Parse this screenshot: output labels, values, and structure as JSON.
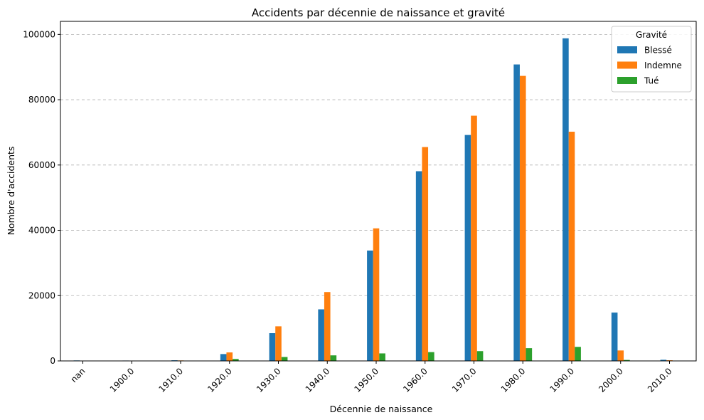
{
  "chart_data": {
    "type": "bar",
    "title": "Accidents par décennie de naissance et gravité",
    "xlabel": "Décennie de naissance",
    "ylabel": "Nombre d'accidents",
    "categories": [
      "nan",
      "1900.0",
      "1910.0",
      "1920.0",
      "1930.0",
      "1940.0",
      "1950.0",
      "1960.0",
      "1970.0",
      "1980.0",
      "1990.0",
      "2000.0",
      "2010.0"
    ],
    "series": [
      {
        "name": "Blessé",
        "color": "#1f77b4",
        "values": [
          150,
          120,
          200,
          2100,
          8500,
          15800,
          33800,
          58100,
          69200,
          90800,
          98800,
          14800,
          350
        ]
      },
      {
        "name": "Indemne",
        "color": "#ff7f0e",
        "values": [
          50,
          100,
          150,
          2600,
          10600,
          21100,
          40600,
          65500,
          75100,
          87300,
          70200,
          3200,
          200
        ]
      },
      {
        "name": "Tué",
        "color": "#2ca02c",
        "values": [
          10,
          20,
          100,
          600,
          1200,
          1700,
          2300,
          2700,
          3000,
          3900,
          4300,
          300,
          100
        ]
      }
    ],
    "ylim": [
      0,
      104000
    ],
    "yticks": [
      0,
      20000,
      40000,
      60000,
      80000,
      100000
    ],
    "ytick_labels": [
      "0",
      "20000",
      "40000",
      "60000",
      "80000",
      "100000"
    ],
    "grid": "y-dashed",
    "legend": {
      "title": "Gravité",
      "position": "top-right"
    }
  }
}
